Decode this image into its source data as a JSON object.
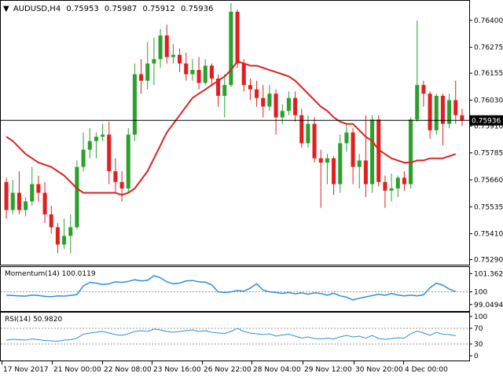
{
  "chart_data": {
    "type": "candlestick",
    "symbol_line": {
      "symbol": "AUDUSD,H4",
      "open": "0.75953",
      "high": "0.75987",
      "low": "0.75912",
      "close": "0.75936"
    },
    "price_ticks": [
      "0.76400",
      "0.76275",
      "0.76155",
      "0.76030",
      "0.75910",
      "0.75785",
      "0.75660",
      "0.75535",
      "0.75410",
      "0.75290"
    ],
    "price_ylim": [
      0.7527,
      0.7648
    ],
    "current_price": {
      "label": "0.75936",
      "value": 0.75936
    },
    "x_labels": [
      "17 Nov 2017",
      "21 Nov 00:00",
      "22 Nov 08:00",
      "23 Nov 16:00",
      "26 Nov 22:00",
      "28 Nov 04:00",
      "29 Nov 12:00",
      "30 Nov 20:00",
      "4 Dec 00:00"
    ],
    "colors": {
      "up": "#2ca02c",
      "down": "#e02020",
      "ma": "#dd2222",
      "indicator": "#2f8fd8",
      "text": "#000000",
      "level_line": "#9a9a9a"
    },
    "candles": [
      [
        0.7565,
        0.7567,
        0.7548,
        0.7552
      ],
      [
        0.7552,
        0.7566,
        0.755,
        0.756
      ],
      [
        0.756,
        0.757,
        0.755,
        0.7552
      ],
      [
        0.7552,
        0.7558,
        0.7549,
        0.7556
      ],
      [
        0.7556,
        0.7572,
        0.7554,
        0.7564
      ],
      [
        0.7564,
        0.7568,
        0.7556,
        0.756
      ],
      [
        0.756,
        0.7565,
        0.7546,
        0.755
      ],
      [
        0.755,
        0.7554,
        0.7541,
        0.7544
      ],
      [
        0.7544,
        0.7546,
        0.7532,
        0.7536
      ],
      [
        0.7536,
        0.7548,
        0.7534,
        0.754
      ],
      [
        0.754,
        0.755,
        0.7532,
        0.7544
      ],
      [
        0.7544,
        0.7575,
        0.7543,
        0.7572
      ],
      [
        0.7572,
        0.7588,
        0.757,
        0.758
      ],
      [
        0.758,
        0.759,
        0.7576,
        0.7584
      ],
      [
        0.7584,
        0.7588,
        0.7576,
        0.7586
      ],
      [
        0.7586,
        0.7592,
        0.7584,
        0.7587
      ],
      [
        0.7587,
        0.7593,
        0.7564,
        0.757
      ],
      [
        0.757,
        0.7576,
        0.756,
        0.7565
      ],
      [
        0.7565,
        0.757,
        0.7556,
        0.7562
      ],
      [
        0.7562,
        0.759,
        0.756,
        0.7587
      ],
      [
        0.7587,
        0.762,
        0.7584,
        0.7615
      ],
      [
        0.7615,
        0.7622,
        0.7606,
        0.7612
      ],
      [
        0.7612,
        0.763,
        0.7608,
        0.762
      ],
      [
        0.762,
        0.7632,
        0.761,
        0.7622
      ],
      [
        0.7622,
        0.7636,
        0.7618,
        0.7633
      ],
      [
        0.7633,
        0.7638,
        0.762,
        0.7623
      ],
      [
        0.7623,
        0.7629,
        0.762,
        0.7624
      ],
      [
        0.7624,
        0.7627,
        0.7616,
        0.762
      ],
      [
        0.762,
        0.7625,
        0.7612,
        0.7615
      ],
      [
        0.7615,
        0.7622,
        0.7612,
        0.7617
      ],
      [
        0.7617,
        0.7623,
        0.7608,
        0.7611
      ],
      [
        0.7611,
        0.7622,
        0.761,
        0.7619
      ],
      [
        0.7619,
        0.762,
        0.761,
        0.7613
      ],
      [
        0.7613,
        0.7615,
        0.76,
        0.7605
      ],
      [
        0.7605,
        0.7615,
        0.7595,
        0.761
      ],
      [
        0.761,
        0.7648,
        0.7609,
        0.7644
      ],
      [
        0.7644,
        0.7645,
        0.7618,
        0.762
      ],
      [
        0.762,
        0.7622,
        0.7607,
        0.761
      ],
      [
        0.761,
        0.7613,
        0.7603,
        0.7608
      ],
      [
        0.7608,
        0.7612,
        0.76,
        0.7604
      ],
      [
        0.7604,
        0.761,
        0.7595,
        0.76
      ],
      [
        0.76,
        0.761,
        0.7598,
        0.7606
      ],
      [
        0.7606,
        0.7608,
        0.7587,
        0.7595
      ],
      [
        0.7595,
        0.7601,
        0.7592,
        0.7598
      ],
      [
        0.7598,
        0.7607,
        0.7596,
        0.7604
      ],
      [
        0.7604,
        0.7607,
        0.7593,
        0.7596
      ],
      [
        0.7596,
        0.7599,
        0.7581,
        0.7583
      ],
      [
        0.7583,
        0.7596,
        0.7581,
        0.7592
      ],
      [
        0.7592,
        0.7595,
        0.7574,
        0.7576
      ],
      [
        0.7576,
        0.758,
        0.7553,
        0.7574
      ],
      [
        0.7574,
        0.7578,
        0.7564,
        0.7576
      ],
      [
        0.7576,
        0.7577,
        0.7559,
        0.7564
      ],
      [
        0.7564,
        0.7587,
        0.756,
        0.7583
      ],
      [
        0.7583,
        0.7592,
        0.7579,
        0.7588
      ],
      [
        0.7588,
        0.759,
        0.7564,
        0.7572
      ],
      [
        0.7572,
        0.7578,
        0.7562,
        0.7575
      ],
      [
        0.7575,
        0.7596,
        0.7558,
        0.7564
      ],
      [
        0.7564,
        0.7596,
        0.756,
        0.7594
      ],
      [
        0.7594,
        0.7596,
        0.7563,
        0.7565
      ],
      [
        0.7565,
        0.7568,
        0.7553,
        0.7561
      ],
      [
        0.7561,
        0.7569,
        0.7556,
        0.7562
      ],
      [
        0.7562,
        0.7568,
        0.7558,
        0.7567
      ],
      [
        0.7567,
        0.757,
        0.7561,
        0.7564
      ],
      [
        0.7564,
        0.7595,
        0.7562,
        0.7594
      ],
      [
        0.7594,
        0.764,
        0.7593,
        0.761
      ],
      [
        0.761,
        0.7612,
        0.76,
        0.7606
      ],
      [
        0.7606,
        0.7607,
        0.7585,
        0.7589
      ],
      [
        0.7589,
        0.7606,
        0.7587,
        0.7605
      ],
      [
        0.7605,
        0.7606,
        0.7582,
        0.7592
      ],
      [
        0.7592,
        0.7606,
        0.759,
        0.7603
      ],
      [
        0.7603,
        0.7612,
        0.7592,
        0.7596
      ],
      [
        0.7596,
        0.7599,
        0.7591,
        0.75936
      ]
    ],
    "moving_average": [
      0.7586,
      0.7584,
      0.7581,
      0.7578,
      0.7576,
      0.7574,
      0.7573,
      0.7572,
      0.757,
      0.7568,
      0.7565,
      0.7562,
      0.756,
      0.756,
      0.756,
      0.756,
      0.756,
      0.756,
      0.7559,
      0.756,
      0.7562,
      0.7566,
      0.757,
      0.7576,
      0.7582,
      0.7588,
      0.7592,
      0.7596,
      0.76,
      0.7604,
      0.7606,
      0.7608,
      0.761,
      0.7612,
      0.7614,
      0.7617,
      0.7621,
      0.762,
      0.7619,
      0.7619,
      0.7618,
      0.7617,
      0.7616,
      0.7615,
      0.7614,
      0.7612,
      0.7609,
      0.7606,
      0.7603,
      0.76,
      0.7598,
      0.7595,
      0.7593,
      0.7592,
      0.7592,
      0.7589,
      0.7586,
      0.7584,
      0.758,
      0.7578,
      0.7576,
      0.7575,
      0.7574,
      0.7574,
      0.7575,
      0.7575,
      0.7576,
      0.7576,
      0.7576,
      0.7577,
      0.7578
    ],
    "momentum": {
      "label": "Momentum(14) 100.0119",
      "ticks": [
        "101.3627",
        "100",
        "99.0494"
      ],
      "ylim": [
        98.8,
        101.5
      ],
      "level": 100,
      "values": [
        99.75,
        99.72,
        99.7,
        99.68,
        99.75,
        99.72,
        99.66,
        99.64,
        99.7,
        99.68,
        99.72,
        99.8,
        100.45,
        100.7,
        100.65,
        100.55,
        100.6,
        100.75,
        100.7,
        100.78,
        100.9,
        100.82,
        100.86,
        101.2,
        101.05,
        100.75,
        100.6,
        100.65,
        100.82,
        100.84,
        100.75,
        100.72,
        100.52,
        100.0,
        99.95,
        100.0,
        100.1,
        100.05,
        100.28,
        100.6,
        100.12,
        100.0,
        99.95,
        99.88,
        99.95,
        99.85,
        99.92,
        99.82,
        99.92,
        99.88,
        99.75,
        99.9,
        99.7,
        99.6,
        99.4,
        99.52,
        99.62,
        99.72,
        99.82,
        99.74,
        99.88,
        99.76,
        99.7,
        99.75,
        99.7,
        99.78,
        100.3,
        100.65,
        100.5,
        100.2,
        100.02
      ]
    },
    "rsi": {
      "label": "RSI(14) 50.9820",
      "ticks": [
        "100",
        "70",
        "30",
        "0"
      ],
      "ylim": [
        0,
        100
      ],
      "levels": [
        70,
        30
      ],
      "values": [
        40,
        42,
        41,
        40,
        43,
        41,
        39,
        38,
        37,
        40,
        41,
        45,
        55,
        58,
        60,
        62,
        58,
        54,
        52,
        56,
        62,
        64,
        62,
        68,
        66,
        62,
        60,
        62,
        64,
        66,
        62,
        64,
        60,
        58,
        57,
        62,
        70,
        62,
        58,
        56,
        54,
        56,
        50,
        53,
        55,
        50,
        45,
        48,
        44,
        43,
        45,
        43,
        48,
        52,
        48,
        50,
        45,
        52,
        44,
        42,
        44,
        46,
        45,
        56,
        63,
        58,
        52,
        60,
        55,
        54,
        51
      ]
    }
  }
}
